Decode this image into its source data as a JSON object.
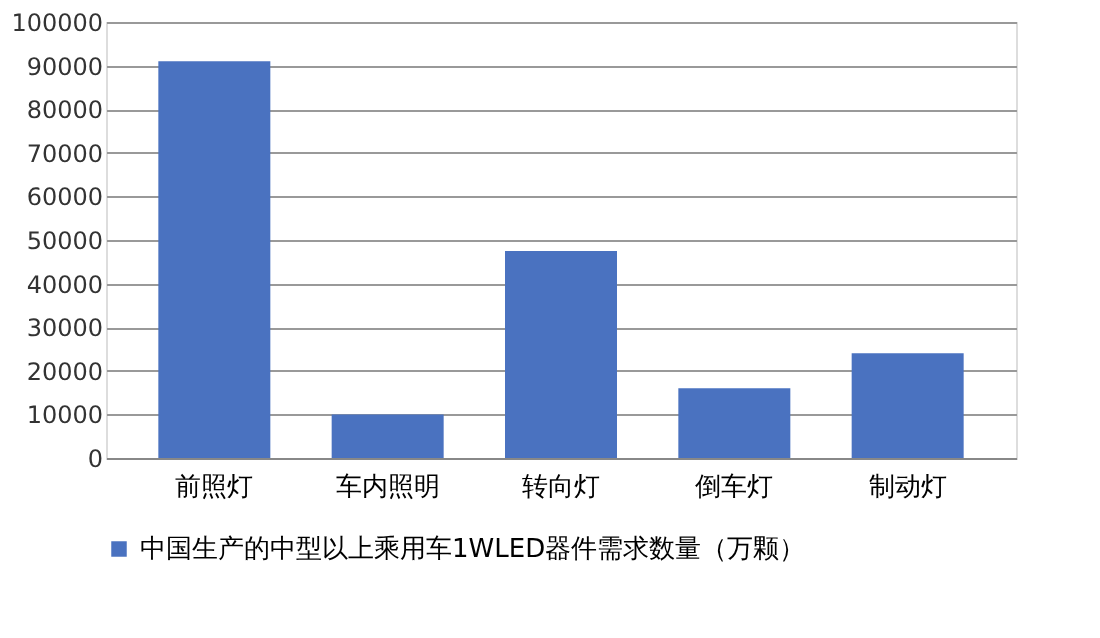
{
  "chart_data": {
    "type": "bar",
    "categories": [
      "前照灯",
      "车内照明",
      "转向灯",
      "倒车灯",
      "制动灯"
    ],
    "series": [
      {
        "name": "中国生产的中型以上乘用车1WLED器件需求数量（万颗）",
        "color": "#4a72c0",
        "values": [
          91000,
          10000,
          47500,
          16000,
          24000
        ]
      }
    ],
    "ylim": [
      0,
      100000
    ],
    "yticks": [
      0,
      10000,
      20000,
      30000,
      40000,
      50000,
      60000,
      70000,
      80000,
      90000,
      100000
    ],
    "grid": "y",
    "legend": "bottom"
  }
}
